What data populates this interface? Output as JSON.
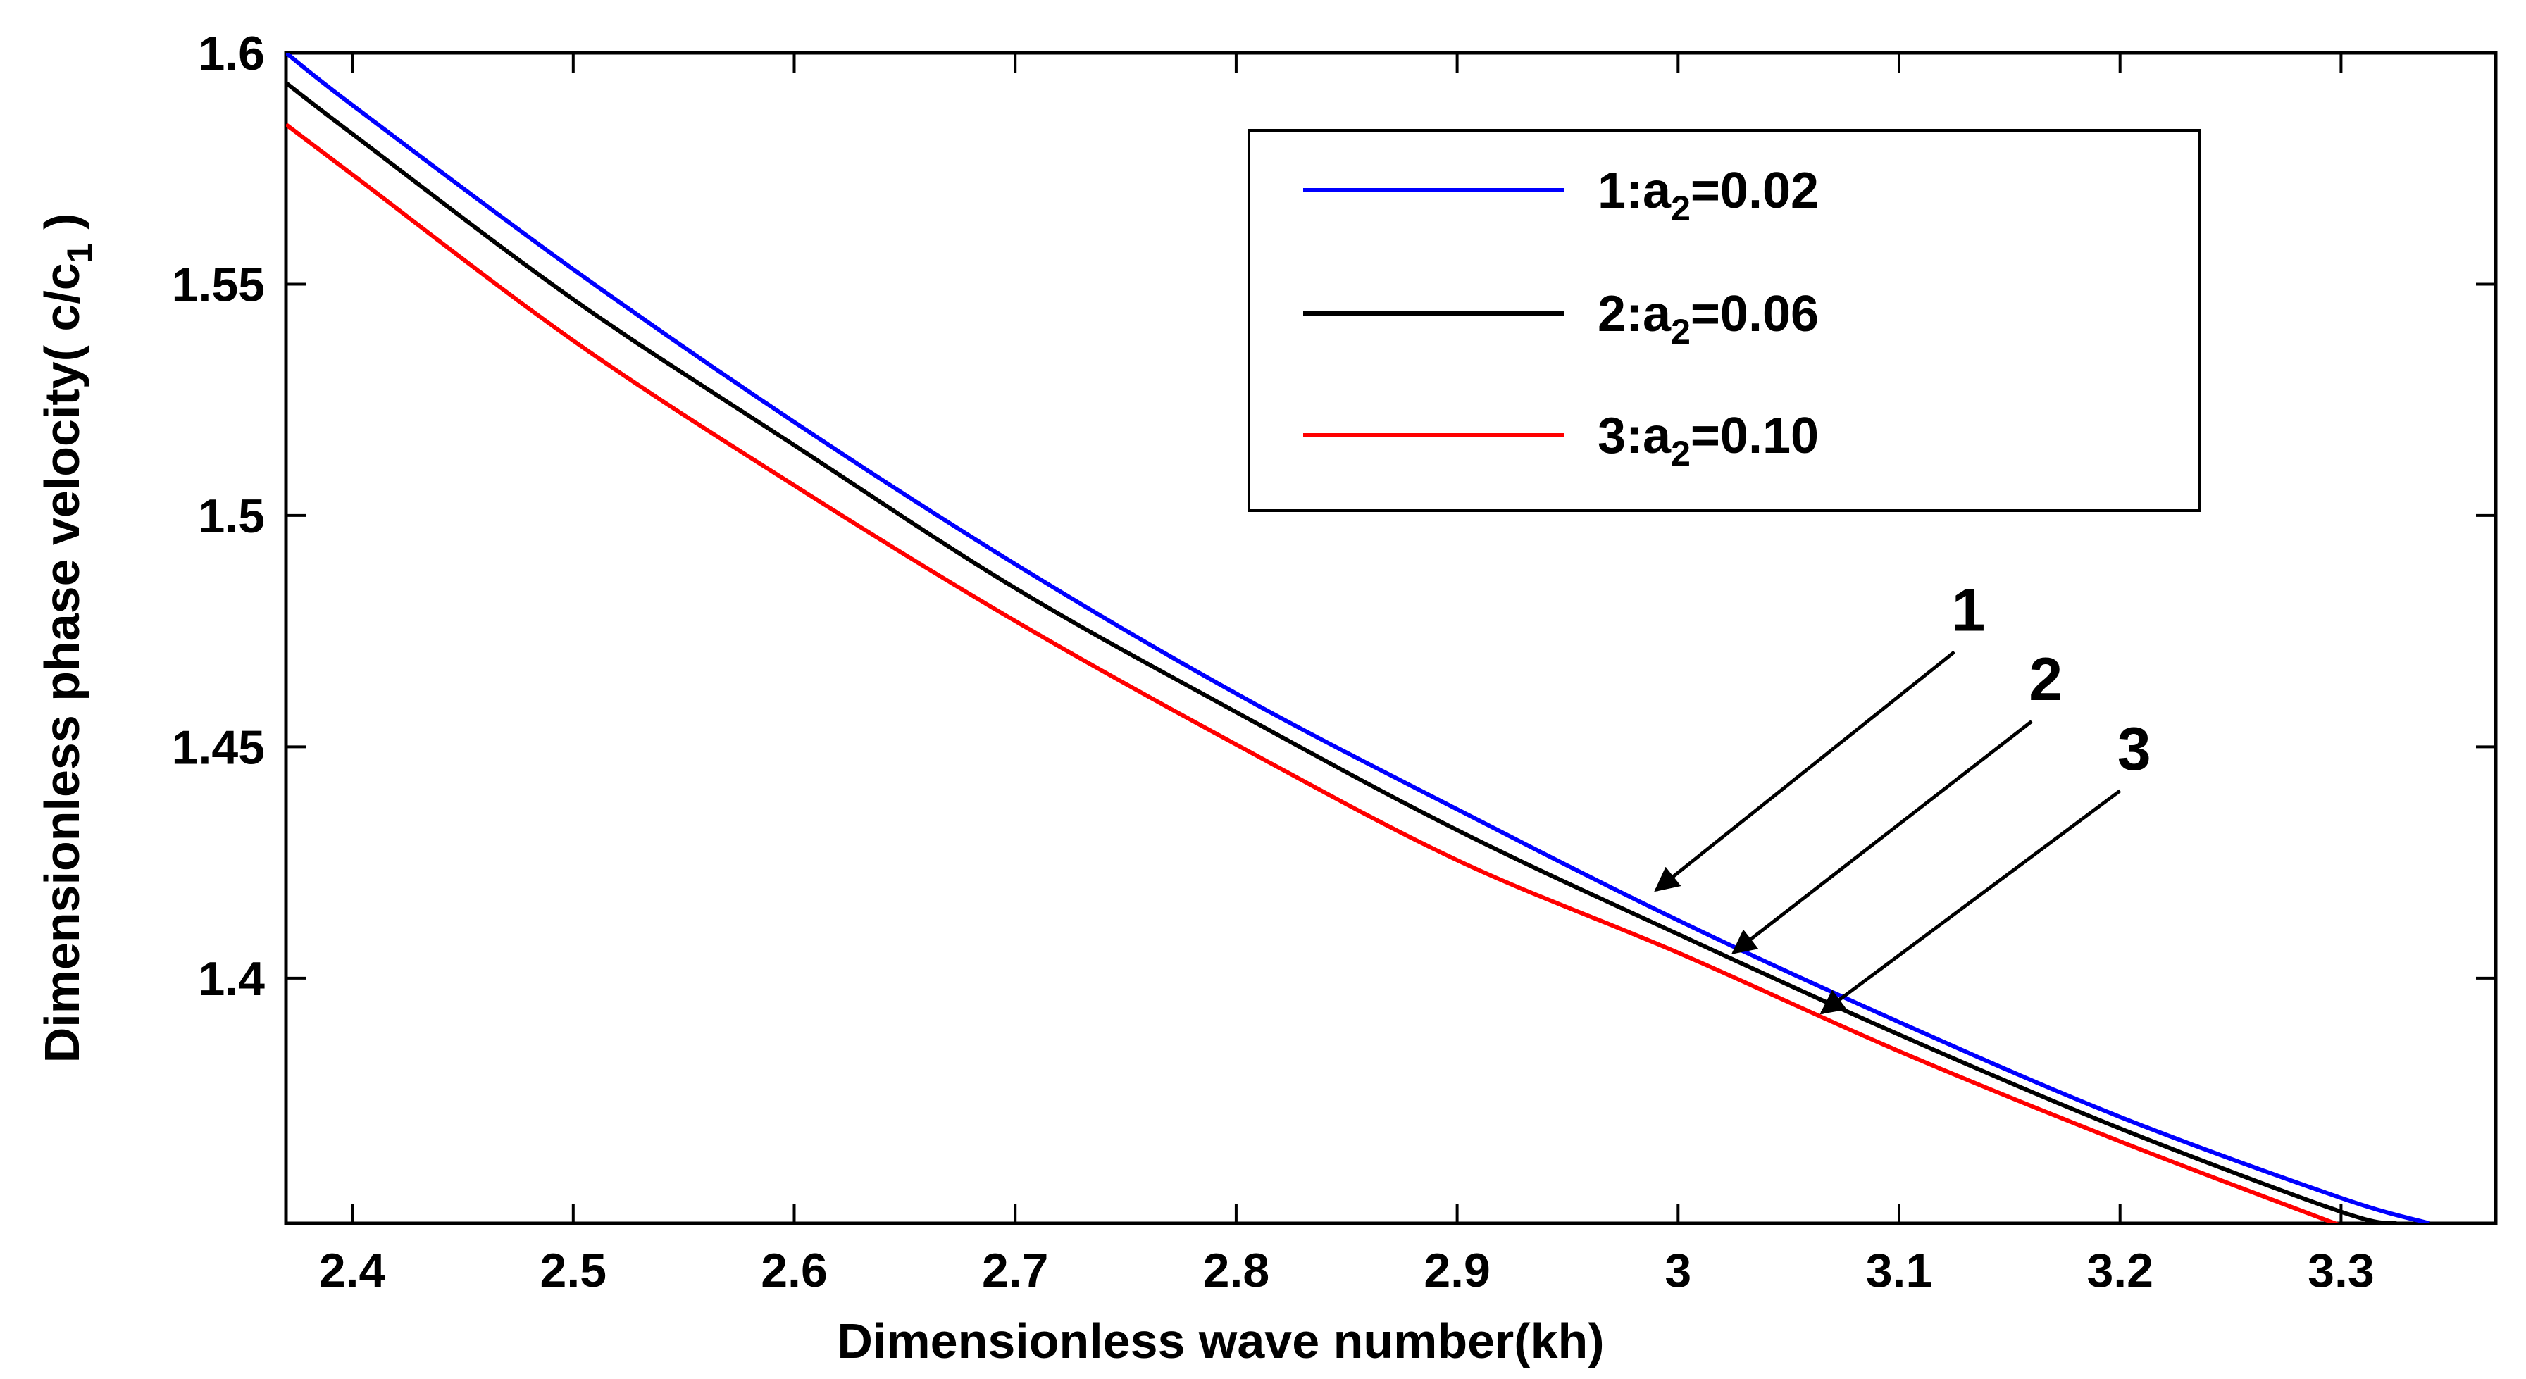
{
  "chart_data": {
    "type": "line",
    "title": "",
    "xlabel": "Dimensionless wave number(kh)",
    "ylabel": {
      "main": "Dimensionless phase velocity(  c/c",
      "sub": "1",
      "close": " )"
    },
    "xlim": [
      2.37,
      3.37
    ],
    "ylim": [
      1.347,
      1.6
    ],
    "xticks": [
      2.4,
      2.5,
      2.6,
      2.7,
      2.8,
      2.9,
      3.0,
      3.1,
      3.2,
      3.3
    ],
    "xtick_labels": [
      "2.4",
      "2.5",
      "2.6",
      "2.7",
      "2.8",
      "2.9",
      "3",
      "3.1",
      "3.2",
      "3.3"
    ],
    "yticks": [
      1.4,
      1.45,
      1.5,
      1.55,
      1.6
    ],
    "ytick_labels": [
      "1.4",
      "1.45",
      "1.5",
      "1.55",
      "1.6"
    ],
    "legend_position": "top-right",
    "series": [
      {
        "name": "1:a2=0.02",
        "label_parts": [
          "1:a",
          "2",
          "=0.02"
        ],
        "color": "#0000ff",
        "x": [
          2.37,
          2.4,
          2.5,
          2.6,
          2.7,
          2.8,
          2.9,
          3.0,
          3.1,
          3.2,
          3.3,
          3.34
        ],
        "y": [
          1.6,
          1.5887,
          1.5532,
          1.5202,
          1.4895,
          1.4615,
          1.4365,
          1.4125,
          1.3905,
          1.37,
          1.3525,
          1.347
        ]
      },
      {
        "name": "2:a2=0.06",
        "label_parts": [
          "2:a",
          "2",
          "=0.06"
        ],
        "color": "#000000",
        "x": [
          2.37,
          2.4,
          2.5,
          2.6,
          2.7,
          2.8,
          2.9,
          3.0,
          3.1,
          3.2,
          3.3,
          3.325
        ],
        "y": [
          1.5935,
          1.5825,
          1.5467,
          1.5152,
          1.4843,
          1.4575,
          1.432,
          1.4095,
          1.3878,
          1.3675,
          1.3495,
          1.347
        ]
      },
      {
        "name": "3:a2=0.10",
        "label_parts": [
          "3:a",
          "2",
          "=0.10"
        ],
        "color": "#ff0000",
        "x": [
          2.37,
          2.4,
          2.5,
          2.6,
          2.7,
          2.8,
          2.9,
          3.0,
          3.1,
          3.2,
          3.3
        ],
        "y": [
          1.5845,
          1.5737,
          1.5378,
          1.5065,
          1.4772,
          1.4505,
          1.4255,
          1.4055,
          1.3842,
          1.3647,
          1.3465
        ]
      }
    ],
    "annotations": [
      {
        "text": "1",
        "arrow_from": [
          3.125,
          1.4705
        ],
        "arrow_to": [
          2.99,
          1.419
        ]
      },
      {
        "text": "2",
        "arrow_from": [
          3.16,
          1.4555
        ],
        "arrow_to": [
          3.025,
          1.4055
        ]
      },
      {
        "text": "3",
        "arrow_from": [
          3.2,
          1.4405
        ],
        "arrow_to": [
          3.065,
          1.3925
        ]
      }
    ]
  }
}
